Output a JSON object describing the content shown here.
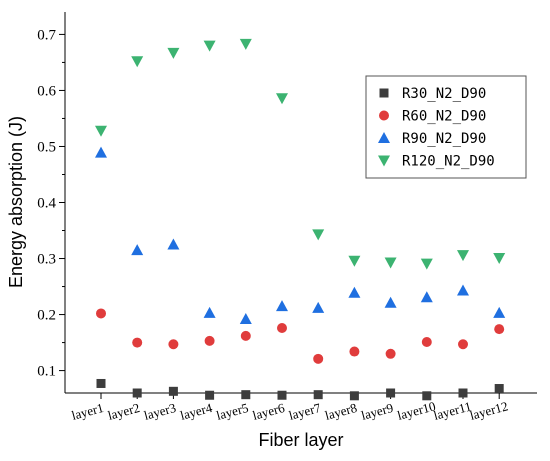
{
  "chart_data": {
    "type": "scatter",
    "categories": [
      "layer1",
      "layer2",
      "layer3",
      "layer4",
      "layer5",
      "layer6",
      "layer7",
      "layer8",
      "layer9",
      "layer10",
      "layer11",
      "layer12"
    ],
    "xlabel": "Fiber layer",
    "ylabel": "Energy absorption (J)",
    "ylim": [
      0.06,
      0.74
    ],
    "yticks": [
      0.1,
      0.2,
      0.3,
      0.4,
      0.5,
      0.6,
      0.7
    ],
    "legend_position": "top-right",
    "series": [
      {
        "name": "R30_N2_D90",
        "marker": "square",
        "color": "#3d3d3d",
        "values": [
          0.077,
          0.06,
          0.063,
          0.056,
          0.057,
          0.056,
          0.057,
          0.055,
          0.06,
          0.055,
          0.06,
          0.068
        ]
      },
      {
        "name": "R60_N2_D90",
        "marker": "circle",
        "color": "#e03c3c",
        "values": [
          0.202,
          0.15,
          0.147,
          0.153,
          0.162,
          0.176,
          0.121,
          0.134,
          0.13,
          0.151,
          0.147,
          0.174
        ]
      },
      {
        "name": "R90_N2_D90",
        "marker": "triangle-up",
        "color": "#1f6fe0",
        "values": [
          0.489,
          0.315,
          0.325,
          0.203,
          0.192,
          0.215,
          0.212,
          0.239,
          0.221,
          0.231,
          0.243,
          0.203
        ]
      },
      {
        "name": "R120_N2_D90",
        "marker": "triangle-down",
        "color": "#3cb371",
        "values": [
          0.528,
          0.652,
          0.667,
          0.68,
          0.683,
          0.586,
          0.343,
          0.296,
          0.293,
          0.291,
          0.306,
          0.301
        ]
      }
    ]
  }
}
